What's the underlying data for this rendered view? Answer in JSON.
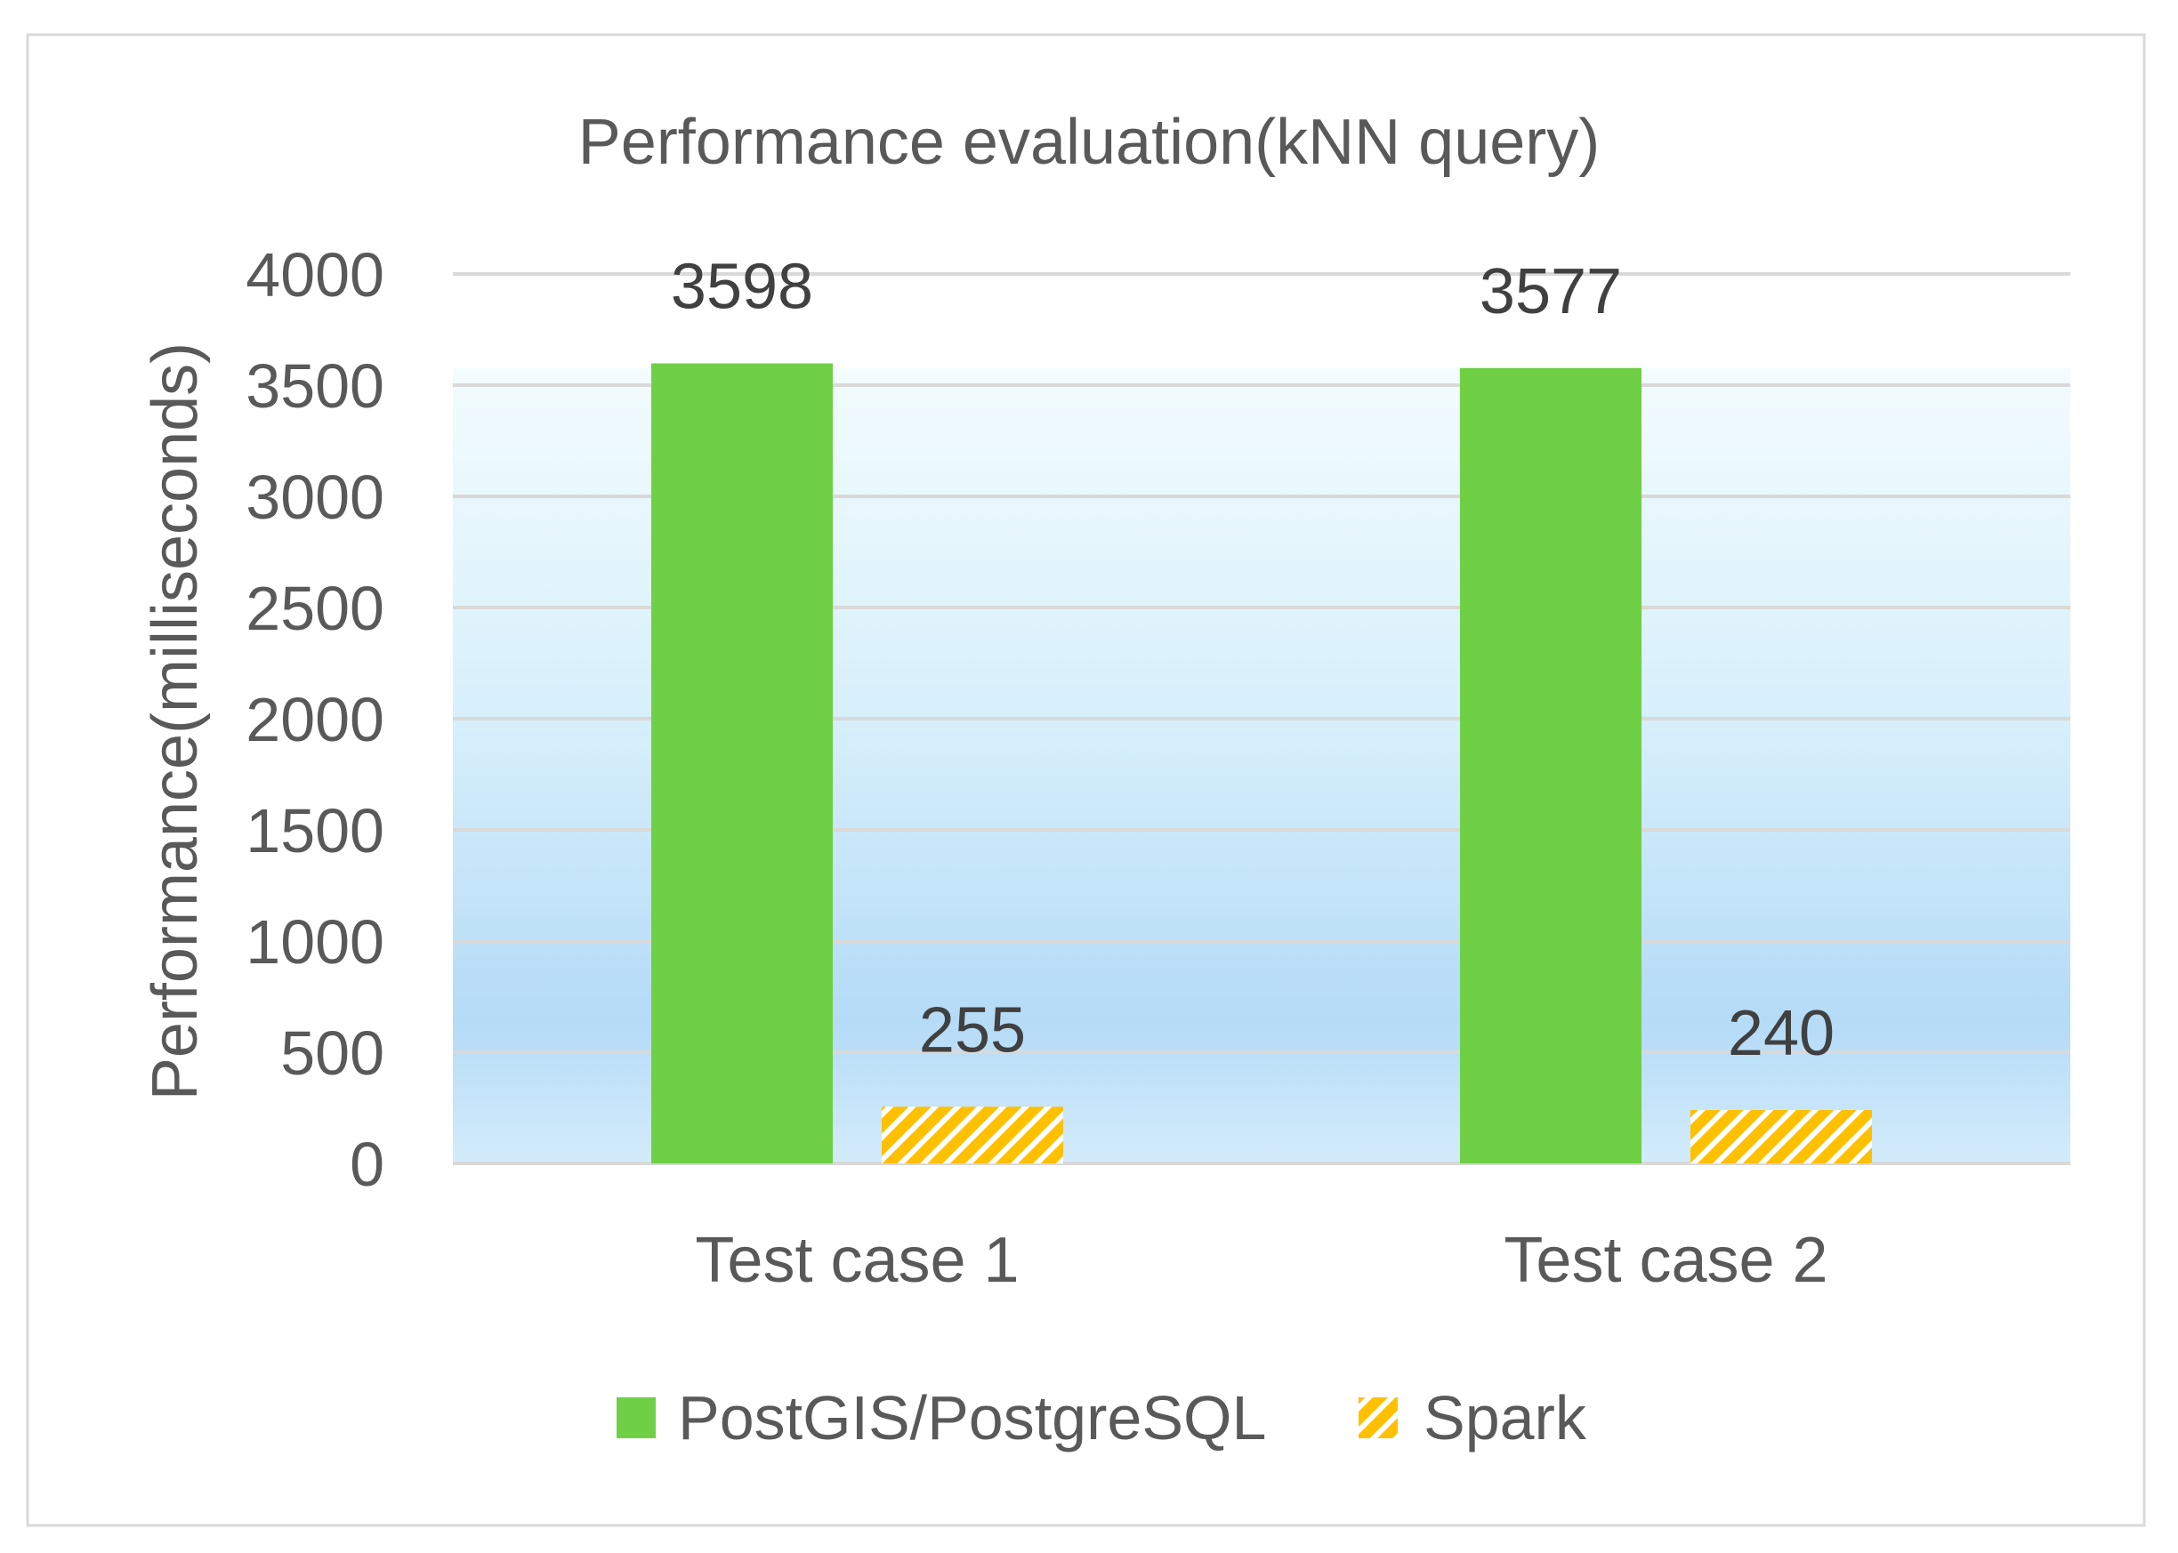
{
  "chart_data": {
    "type": "bar",
    "title": "Performance evaluation(kNN query)",
    "xlabel": "",
    "ylabel": "Performance(milliseconds)",
    "categories": [
      "Test case 1",
      "Test case 2"
    ],
    "series": [
      {
        "name": "PostGIS/PostgreSQL",
        "values": [
          3598,
          3577
        ],
        "color": "#6fd045",
        "fill": "solid"
      },
      {
        "name": "Spark",
        "values": [
          255,
          240
        ],
        "color": "#ffc000",
        "fill": "hatched"
      }
    ],
    "ylim": [
      0,
      4000
    ],
    "yticks": [
      0,
      500,
      1000,
      1500,
      2000,
      2500,
      3000,
      3500,
      4000
    ],
    "grid": true,
    "data_labels": true,
    "legend": "bottom"
  },
  "colors": {
    "plot_background": "light blue gradient",
    "gridline": "#d9d9d9",
    "hatch_stripe": "#ffffff"
  }
}
